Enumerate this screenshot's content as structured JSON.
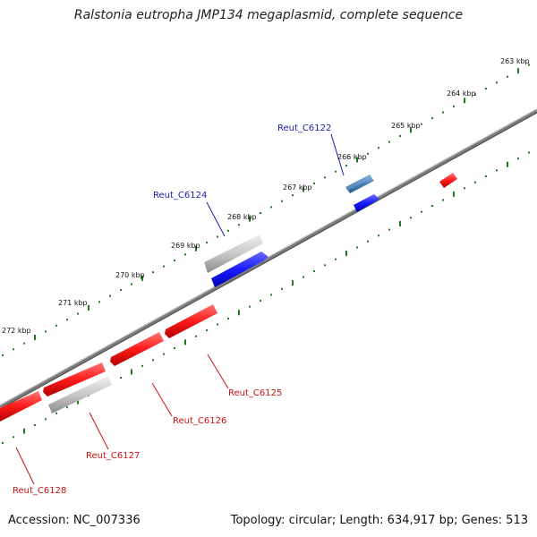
{
  "title": "Ralstonia eutropha JMP134 megaplasmid, complete sequence",
  "colors": {
    "forward_gene": "#1a1aff",
    "forward_gene_light": "#4a90c8",
    "reverse_gene": "#ff1a1a",
    "pseudo_gene": "#c8c8c8",
    "ticks": "#1e7a1e",
    "backbone": "#808080",
    "forward_label": "#1a1aaa",
    "reverse_label": "#cc1111"
  },
  "scale_ticks": [
    {
      "label": "263 kbp",
      "kbp": 263
    },
    {
      "label": "264 kbp",
      "kbp": 264
    },
    {
      "label": "265 kbp",
      "kbp": 265
    },
    {
      "label": "266 kbp",
      "kbp": 266
    },
    {
      "label": "267 kbp",
      "kbp": 267
    },
    {
      "label": "268 kbp",
      "kbp": 268
    },
    {
      "label": "269 kbp",
      "kbp": 269
    },
    {
      "label": "270 kbp",
      "kbp": 270
    },
    {
      "label": "271 kbp",
      "kbp": 271
    },
    {
      "label": "272 kbp",
      "kbp": 272
    }
  ],
  "gene_labels": {
    "forward": [
      "Reut_C6122",
      "Reut_C6124"
    ],
    "reverse": [
      "Reut_C6125",
      "Reut_C6126",
      "Reut_C6127",
      "Reut_C6128"
    ]
  },
  "footer": {
    "accession": "Accession: NC_007336",
    "summary": "Topology: circular; Length: 634,917 bp; Genes: 513"
  }
}
